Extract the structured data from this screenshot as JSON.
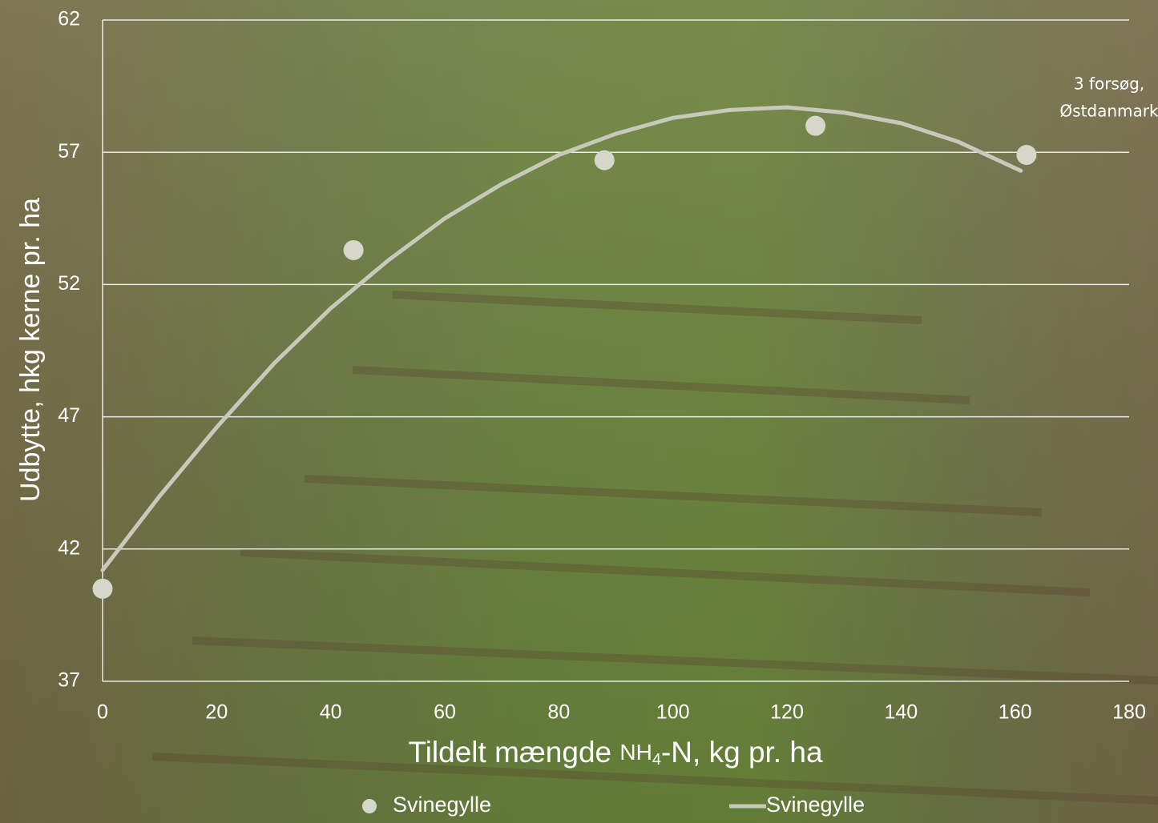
{
  "chart_data": {
    "type": "scatter",
    "x_label": [
      "Tildelt mængde ",
      "NH",
      "4",
      "-N, kg pr. ha"
    ],
    "y_label": "Udbytte, hkg kerne pr. ha",
    "annotation": [
      "3 forsøg,",
      "Østdanmark"
    ],
    "xlim": [
      0,
      180
    ],
    "xticks": [
      0,
      20,
      40,
      60,
      80,
      100,
      120,
      140,
      160,
      180
    ],
    "ylim": [
      37,
      62
    ],
    "yticks": [
      37,
      42,
      47,
      52,
      57,
      62
    ],
    "grid": true,
    "legend": "bottom",
    "series": [
      {
        "name": "Svinegylle",
        "type": "scatter",
        "color": "#d6d6cb",
        "x": [
          0,
          44,
          88,
          125,
          162
        ],
        "values": [
          40.5,
          53.3,
          56.7,
          58.0,
          56.9
        ]
      },
      {
        "name": "Svinegylle",
        "type": "line",
        "color": "#c9c9bb",
        "x": [
          0,
          10,
          20,
          30,
          40,
          50,
          60,
          70,
          80,
          90,
          100,
          110,
          120,
          130,
          140,
          150,
          160,
          161
        ],
        "values": [
          41.2,
          44.0,
          46.6,
          49.0,
          51.1,
          52.9,
          54.5,
          55.8,
          56.9,
          57.7,
          58.3,
          58.6,
          58.7,
          58.5,
          58.1,
          57.4,
          56.4,
          56.3
        ]
      }
    ]
  }
}
